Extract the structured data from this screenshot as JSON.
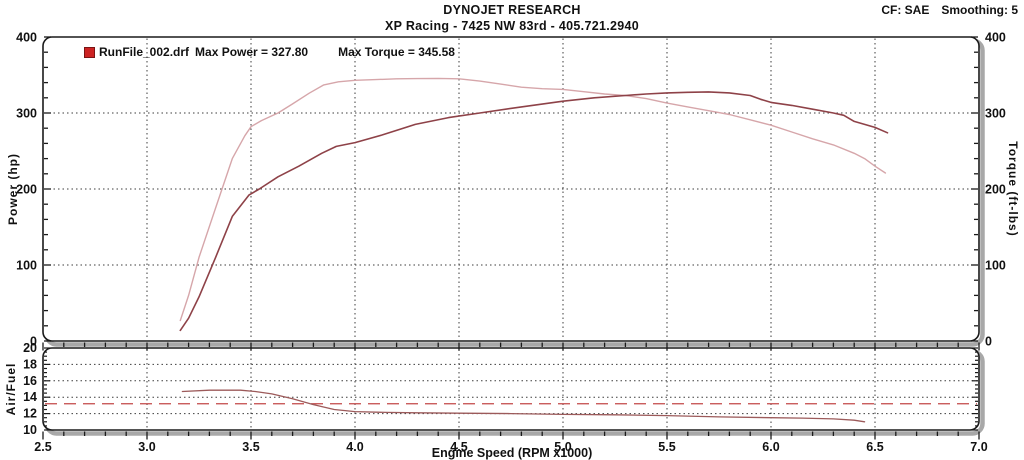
{
  "header": {
    "title": "DYNOJET RESEARCH",
    "subtitle": "XP Racing - 7425 NW 83rd - 405.721.2940",
    "correction_factor": "CF: SAE",
    "smoothing": "Smoothing: 5"
  },
  "legend": {
    "swatch_color": "#cc2222",
    "swatch_border": "#7a1414",
    "file_name": "RunFile_002.drf",
    "max_power_text": "Max Power = 327.80",
    "max_torque_text": "Max Torque = 345.58"
  },
  "axes": {
    "x_label": "Engine Speed (RPM x1000)",
    "y_left_label": "Power (hp)",
    "y_right_label": "Torque (ft-lbs)",
    "af_label": "Air/Fuel"
  },
  "style": {
    "grid_color": "#3c3c3c",
    "border_color": "#1a1a1a",
    "shadow_color": "#a8a8a8",
    "text_color": "#111111"
  },
  "chart_data": [
    {
      "type": "line",
      "title": "DYNOJET RESEARCH",
      "subtitle": "XP Racing - 7425 NW 83rd - 405.721.2940",
      "xlabel": "Engine Speed (RPM x1000)",
      "ylabel_left": "Power (hp)",
      "ylabel_right": "Torque (ft-lbs)",
      "xlim": [
        2.5,
        7.0
      ],
      "ylim": [
        0,
        400
      ],
      "x_major_step": 0.5,
      "x_minor_step": 0.1,
      "y_major_step": 100,
      "y_minor_step": 20,
      "grid": true,
      "legend_position": "top-left",
      "series": [
        {
          "name": "Torque (ft-lbs)",
          "max": 345.58,
          "color": "#d6a6aa",
          "x": [
            3.16,
            3.2,
            3.25,
            3.33,
            3.41,
            3.47,
            3.5,
            3.55,
            3.63,
            3.7,
            3.78,
            3.85,
            3.92,
            4.0,
            4.1,
            4.2,
            4.3,
            4.4,
            4.5,
            4.6,
            4.7,
            4.8,
            4.9,
            5.0,
            5.1,
            5.2,
            5.3,
            5.4,
            5.5,
            5.6,
            5.7,
            5.8,
            5.9,
            6.0,
            6.1,
            6.2,
            6.3,
            6.4,
            6.45,
            6.5,
            6.55
          ],
          "values": [
            27,
            60,
            110,
            175,
            240,
            270,
            282,
            290,
            300,
            312,
            326,
            337,
            341,
            343,
            344,
            345,
            345.3,
            345.58,
            345,
            342,
            338,
            334,
            332,
            331,
            328,
            325,
            323,
            319,
            313,
            308,
            303,
            298,
            291,
            284,
            275,
            266,
            258,
            247,
            240,
            230,
            221
          ]
        },
        {
          "name": "Power (hp)",
          "max": 327.8,
          "color": "#8e4248",
          "x": [
            3.16,
            3.2,
            3.25,
            3.33,
            3.41,
            3.49,
            3.54,
            3.63,
            3.73,
            3.84,
            3.91,
            4.0,
            4.13,
            4.29,
            4.45,
            4.6,
            4.8,
            5.0,
            5.15,
            5.3,
            5.4,
            5.5,
            5.6,
            5.7,
            5.8,
            5.9,
            5.95,
            6.0,
            6.1,
            6.2,
            6.3,
            6.35,
            6.4,
            6.45,
            6.5,
            6.56
          ],
          "values": [
            14,
            30,
            58,
            110,
            164,
            192,
            200,
            216,
            230,
            247,
            256,
            261,
            271,
            285,
            294,
            300,
            308,
            315.5,
            320,
            323,
            325,
            326.5,
            327.3,
            327.8,
            326.5,
            323,
            318,
            314,
            310,
            305,
            300,
            297,
            289,
            285,
            281,
            274
          ]
        }
      ]
    },
    {
      "type": "line",
      "ylabel_left": "Air/Fuel",
      "xlim": [
        2.5,
        7.0
      ],
      "ylim": [
        10,
        20
      ],
      "y_major_step": 2,
      "y_minor_step": 0.5,
      "grid": true,
      "reference_line": {
        "value": 13.2,
        "color": "#c24848",
        "style": "dashed"
      },
      "series": [
        {
          "name": "Air/Fuel",
          "color": "#9c5a5a",
          "x": [
            3.17,
            3.3,
            3.45,
            3.52,
            3.6,
            3.7,
            3.8,
            3.9,
            4.0,
            4.15,
            4.3,
            4.5,
            4.75,
            5.0,
            5.25,
            5.5,
            5.75,
            6.0,
            6.15,
            6.3,
            6.4,
            6.45
          ],
          "values": [
            14.7,
            14.85,
            14.85,
            14.7,
            14.4,
            13.8,
            13.1,
            12.5,
            12.25,
            12.15,
            12.1,
            12.05,
            12.0,
            11.9,
            11.85,
            11.75,
            11.6,
            11.5,
            11.45,
            11.35,
            11.2,
            11.0
          ]
        }
      ]
    }
  ]
}
